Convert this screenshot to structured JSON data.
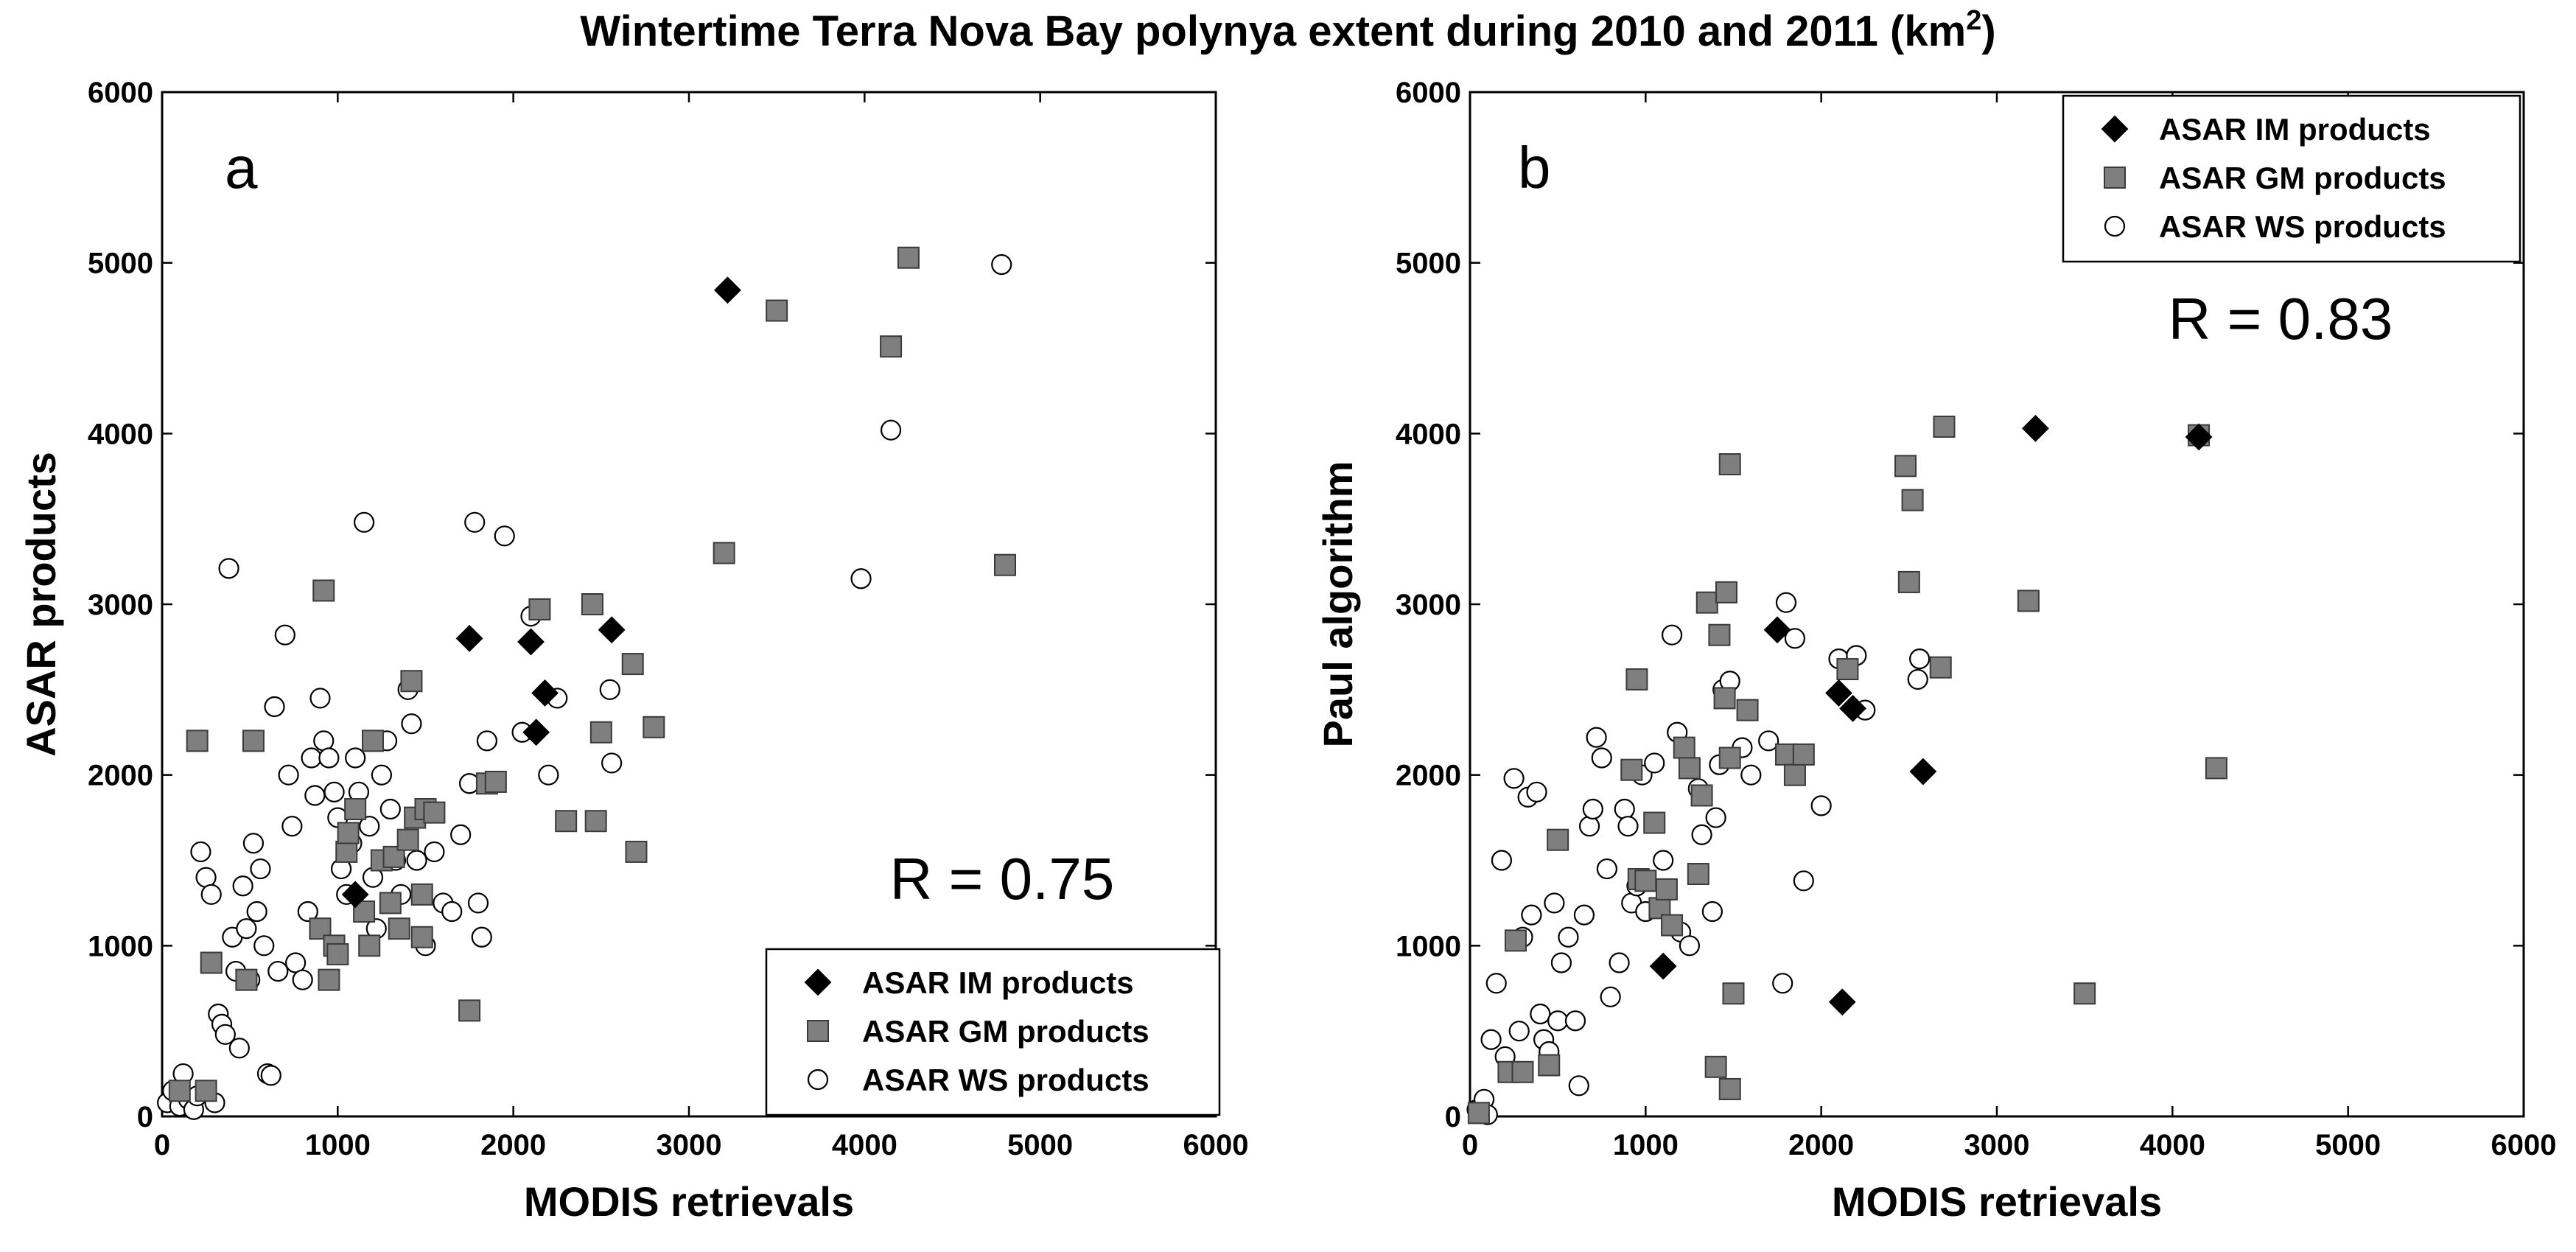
{
  "figure": {
    "title_main": "Wintertime Terra Nova Bay polynya extent during 2010 and 2011 (km",
    "title_sup": "2",
    "title_end": ")"
  },
  "legend": {
    "im": "ASAR IM products",
    "gm": "ASAR GM products",
    "ws": "ASAR WS products"
  },
  "colors": {
    "im": "#000000",
    "gm": "#7f7f7f",
    "ws_fill": "#ffffff",
    "ws_stroke": "#000000"
  },
  "chart_data": [
    {
      "type": "scatter",
      "panel": "a",
      "r_text": "R = 0.75",
      "xlabel": "MODIS retrievals",
      "ylabel": "ASAR products",
      "xlim": [
        0,
        6000
      ],
      "ylim": [
        0,
        6000
      ],
      "xticks": [
        0,
        1000,
        2000,
        3000,
        4000,
        5000,
        6000
      ],
      "yticks": [
        0,
        1000,
        2000,
        3000,
        4000,
        5000,
        6000
      ],
      "legend_position": "bottom-right",
      "series": [
        {
          "name": "ASAR IM products",
          "marker": "diamond",
          "points": [
            [
              1100,
              1300
            ],
            [
              1750,
              2800
            ],
            [
              2100,
              2780
            ],
            [
              2130,
              2250
            ],
            [
              2180,
              2480
            ],
            [
              2560,
              2850
            ],
            [
              3220,
              4840
            ]
          ]
        },
        {
          "name": "ASAR GM products",
          "marker": "square",
          "points": [
            [
              100,
              150
            ],
            [
              200,
              2200
            ],
            [
              250,
              150
            ],
            [
              280,
              900
            ],
            [
              480,
              800
            ],
            [
              520,
              2200
            ],
            [
              900,
              1100
            ],
            [
              920,
              3080
            ],
            [
              950,
              800
            ],
            [
              980,
              1000
            ],
            [
              1000,
              950
            ],
            [
              1050,
              1550
            ],
            [
              1060,
              1660
            ],
            [
              1100,
              1800
            ],
            [
              1150,
              1200
            ],
            [
              1180,
              1000
            ],
            [
              1200,
              2200
            ],
            [
              1250,
              1500
            ],
            [
              1300,
              1250
            ],
            [
              1320,
              1520
            ],
            [
              1350,
              1100
            ],
            [
              1400,
              1620
            ],
            [
              1420,
              2550
            ],
            [
              1440,
              1750
            ],
            [
              1480,
              1300
            ],
            [
              1480,
              1050
            ],
            [
              1500,
              1800
            ],
            [
              1550,
              1780
            ],
            [
              1750,
              620
            ],
            [
              1850,
              1950
            ],
            [
              1900,
              1960
            ],
            [
              2150,
              2970
            ],
            [
              2300,
              1730
            ],
            [
              2450,
              3000
            ],
            [
              2470,
              1730
            ],
            [
              2500,
              2250
            ],
            [
              2680,
              2650
            ],
            [
              2700,
              1550
            ],
            [
              2800,
              2280
            ],
            [
              3200,
              3300
            ],
            [
              3500,
              4720
            ],
            [
              4150,
              4510
            ],
            [
              4250,
              5030
            ],
            [
              4800,
              3230
            ]
          ]
        },
        {
          "name": "ASAR WS products",
          "marker": "circle",
          "points": [
            [
              30,
              80
            ],
            [
              60,
              150
            ],
            [
              100,
              60
            ],
            [
              120,
              250
            ],
            [
              150,
              100
            ],
            [
              180,
              40
            ],
            [
              200,
              120
            ],
            [
              220,
              1550
            ],
            [
              250,
              1400
            ],
            [
              280,
              1300
            ],
            [
              300,
              80
            ],
            [
              320,
              600
            ],
            [
              340,
              540
            ],
            [
              360,
              480
            ],
            [
              380,
              3210
            ],
            [
              400,
              1050
            ],
            [
              420,
              850
            ],
            [
              440,
              400
            ],
            [
              460,
              1350
            ],
            [
              480,
              1100
            ],
            [
              500,
              800
            ],
            [
              520,
              1600
            ],
            [
              540,
              1200
            ],
            [
              560,
              1450
            ],
            [
              580,
              1000
            ],
            [
              600,
              250
            ],
            [
              620,
              240
            ],
            [
              640,
              2400
            ],
            [
              660,
              850
            ],
            [
              700,
              2820
            ],
            [
              720,
              2000
            ],
            [
              740,
              1700
            ],
            [
              760,
              900
            ],
            [
              800,
              800
            ],
            [
              830,
              1200
            ],
            [
              850,
              2100
            ],
            [
              870,
              1880
            ],
            [
              900,
              2450
            ],
            [
              920,
              2200
            ],
            [
              950,
              2100
            ],
            [
              980,
              1900
            ],
            [
              1000,
              1750
            ],
            [
              1020,
              1450
            ],
            [
              1050,
              1300
            ],
            [
              1080,
              1600
            ],
            [
              1100,
              2100
            ],
            [
              1120,
              1900
            ],
            [
              1150,
              3480
            ],
            [
              1180,
              1700
            ],
            [
              1200,
              1400
            ],
            [
              1220,
              1100
            ],
            [
              1250,
              2000
            ],
            [
              1280,
              2200
            ],
            [
              1300,
              1800
            ],
            [
              1330,
              1500
            ],
            [
              1360,
              1300
            ],
            [
              1400,
              2500
            ],
            [
              1420,
              2300
            ],
            [
              1450,
              1500
            ],
            [
              1500,
              1000
            ],
            [
              1550,
              1550
            ],
            [
              1600,
              1250
            ],
            [
              1650,
              1200
            ],
            [
              1700,
              1650
            ],
            [
              1750,
              1950
            ],
            [
              1780,
              3480
            ],
            [
              1800,
              1250
            ],
            [
              1820,
              1050
            ],
            [
              1850,
              2200
            ],
            [
              1950,
              3400
            ],
            [
              2050,
              2250
            ],
            [
              2100,
              2930
            ],
            [
              2200,
              2000
            ],
            [
              2250,
              2450
            ],
            [
              2550,
              2500
            ],
            [
              2560,
              2070
            ],
            [
              3980,
              3150
            ],
            [
              4150,
              4020
            ],
            [
              4780,
              4990
            ]
          ]
        }
      ]
    },
    {
      "type": "scatter",
      "panel": "b",
      "r_text": "R = 0.83",
      "xlabel": "MODIS retrievals",
      "ylabel": "Paul  algorithm",
      "xlim": [
        0,
        6000
      ],
      "ylim": [
        0,
        6000
      ],
      "xticks": [
        0,
        1000,
        2000,
        3000,
        4000,
        5000,
        6000
      ],
      "yticks": [
        0,
        1000,
        2000,
        3000,
        4000,
        5000,
        6000
      ],
      "legend_position": "top-right",
      "series": [
        {
          "name": "ASAR IM products",
          "marker": "diamond",
          "points": [
            [
              1100,
              880
            ],
            [
              1750,
              2850
            ],
            [
              2100,
              2480
            ],
            [
              2120,
              670
            ],
            [
              2180,
              2390
            ],
            [
              2580,
              2020
            ],
            [
              3220,
              4030
            ],
            [
              4150,
              3980
            ]
          ]
        },
        {
          "name": "ASAR GM products",
          "marker": "square",
          "points": [
            [
              50,
              20
            ],
            [
              220,
              260
            ],
            [
              260,
              1030
            ],
            [
              300,
              260
            ],
            [
              450,
              300
            ],
            [
              500,
              1620
            ],
            [
              920,
              2030
            ],
            [
              950,
              2560
            ],
            [
              960,
              1390
            ],
            [
              1000,
              1380
            ],
            [
              1050,
              1720
            ],
            [
              1080,
              1220
            ],
            [
              1120,
              1330
            ],
            [
              1150,
              1120
            ],
            [
              1220,
              2160
            ],
            [
              1250,
              2040
            ],
            [
              1300,
              1420
            ],
            [
              1320,
              1880
            ],
            [
              1350,
              3010
            ],
            [
              1400,
              290
            ],
            [
              1420,
              2820
            ],
            [
              1450,
              2450
            ],
            [
              1460,
              3070
            ],
            [
              1480,
              3820
            ],
            [
              1480,
              2100
            ],
            [
              1480,
              160
            ],
            [
              1500,
              720
            ],
            [
              1580,
              2380
            ],
            [
              1800,
              2120
            ],
            [
              1850,
              2000
            ],
            [
              1900,
              2120
            ],
            [
              2150,
              2620
            ],
            [
              2480,
              3810
            ],
            [
              2500,
              3130
            ],
            [
              2520,
              3610
            ],
            [
              2680,
              2630
            ],
            [
              2700,
              4040
            ],
            [
              3180,
              3020
            ],
            [
              3500,
              720
            ],
            [
              4150,
              3990
            ],
            [
              4250,
              2040
            ]
          ]
        },
        {
          "name": "ASAR WS products",
          "marker": "circle",
          "points": [
            [
              40,
              40
            ],
            [
              80,
              100
            ],
            [
              100,
              10
            ],
            [
              120,
              450
            ],
            [
              150,
              780
            ],
            [
              180,
              1500
            ],
            [
              200,
              350
            ],
            [
              250,
              1980
            ],
            [
              280,
              500
            ],
            [
              300,
              1050
            ],
            [
              330,
              1870
            ],
            [
              350,
              1180
            ],
            [
              380,
              1900
            ],
            [
              400,
              600
            ],
            [
              420,
              450
            ],
            [
              450,
              380
            ],
            [
              480,
              1250
            ],
            [
              500,
              560
            ],
            [
              520,
              900
            ],
            [
              560,
              1050
            ],
            [
              600,
              560
            ],
            [
              620,
              180
            ],
            [
              650,
              1180
            ],
            [
              680,
              1700
            ],
            [
              700,
              1800
            ],
            [
              720,
              2220
            ],
            [
              750,
              2100
            ],
            [
              780,
              1450
            ],
            [
              800,
              700
            ],
            [
              850,
              900
            ],
            [
              880,
              1800
            ],
            [
              900,
              1700
            ],
            [
              920,
              1250
            ],
            [
              950,
              1350
            ],
            [
              980,
              2000
            ],
            [
              1000,
              1200
            ],
            [
              1050,
              2070
            ],
            [
              1100,
              1500
            ],
            [
              1150,
              2820
            ],
            [
              1180,
              2250
            ],
            [
              1200,
              1080
            ],
            [
              1250,
              1000
            ],
            [
              1300,
              1920
            ],
            [
              1320,
              1650
            ],
            [
              1380,
              1200
            ],
            [
              1400,
              1750
            ],
            [
              1420,
              2060
            ],
            [
              1440,
              2500
            ],
            [
              1480,
              2550
            ],
            [
              1550,
              2160
            ],
            [
              1600,
              2000
            ],
            [
              1700,
              2200
            ],
            [
              1780,
              780
            ],
            [
              1800,
              3010
            ],
            [
              1850,
              2800
            ],
            [
              1900,
              1380
            ],
            [
              2000,
              1820
            ],
            [
              2100,
              2680
            ],
            [
              2200,
              2700
            ],
            [
              2250,
              2380
            ],
            [
              2550,
              2560
            ],
            [
              2560,
              2680
            ]
          ]
        }
      ]
    }
  ]
}
